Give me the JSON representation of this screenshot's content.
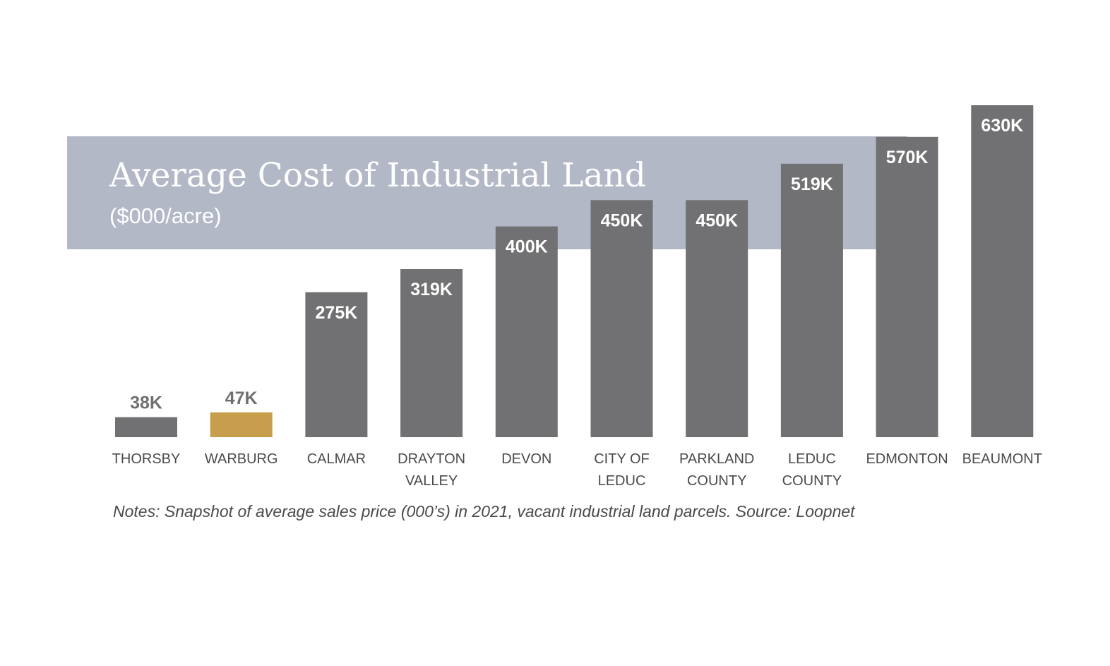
{
  "chart_data": {
    "type": "bar",
    "title": "Average Cost of Industrial Land",
    "subtitle": "($000/acre)",
    "categories": [
      [
        "THORSBY"
      ],
      [
        "WARBURG"
      ],
      [
        "CALMAR"
      ],
      [
        "DRAYTON",
        "VALLEY"
      ],
      [
        "DEVON"
      ],
      [
        "CITY OF",
        "LEDUC"
      ],
      [
        "PARKLAND",
        "COUNTY"
      ],
      [
        "LEDUC",
        "COUNTY"
      ],
      [
        "EDMONTON"
      ],
      [
        "BEAUMONT"
      ]
    ],
    "values": [
      38,
      47,
      275,
      319,
      400,
      450,
      450,
      519,
      570,
      630
    ],
    "value_labels": [
      "38K",
      "47K",
      "275K",
      "319K",
      "400K",
      "450K",
      "450K",
      "519K",
      "570K",
      "630K"
    ],
    "highlight_index": 1,
    "ylim": [
      0,
      630
    ],
    "xlabel": "",
    "ylabel": "",
    "grid": false,
    "legend": "none",
    "note": "Notes: Snapshot of average sales price (000’s) in 2021, vacant industrial land parcels. Source: Loopnet"
  },
  "colors": {
    "bar": "#717173",
    "highlight_bar": "#c79f4c",
    "title_band": "#b2b8c6",
    "text": "#4a4a4c"
  }
}
